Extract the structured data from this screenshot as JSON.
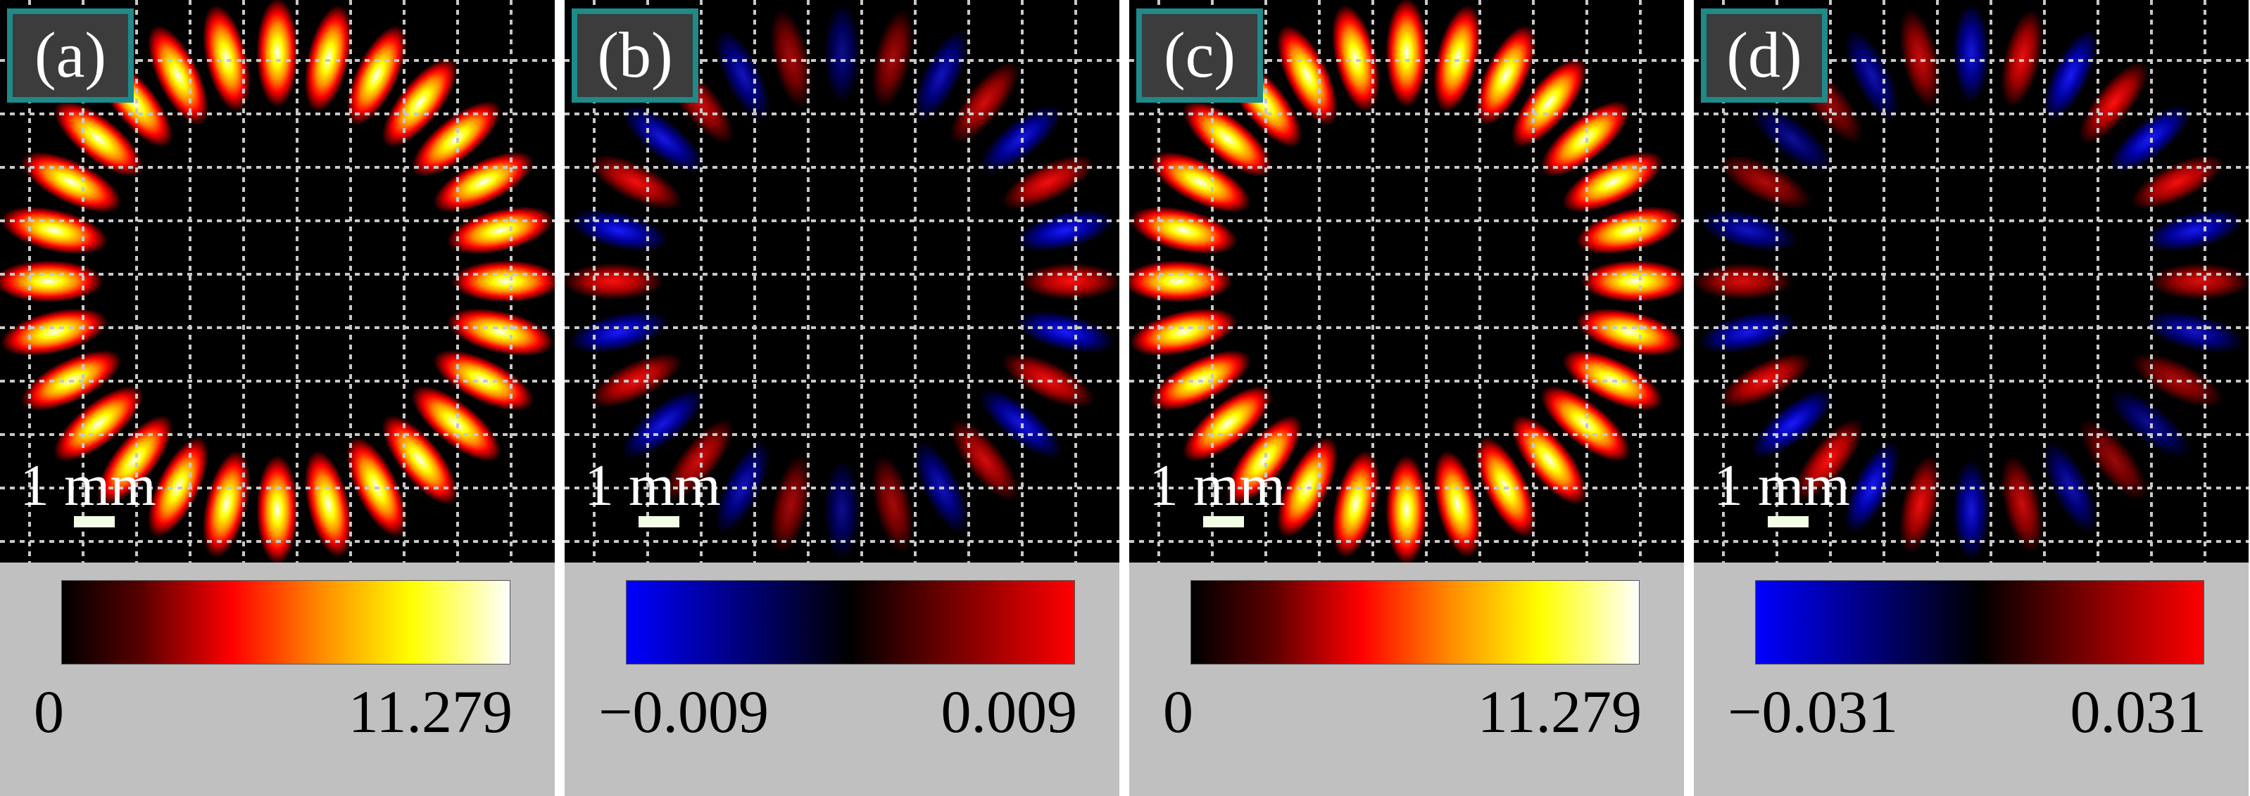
{
  "panels": [
    {
      "label": "(a)",
      "map": "hot",
      "petals": 28,
      "mode": "intensity",
      "scale_label": "1 mm",
      "colorbar": {
        "min": "0",
        "max": "11.279"
      }
    },
    {
      "label": "(b)",
      "map": "diverging",
      "petals": 28,
      "mode": "signed",
      "scale_label": "1 mm",
      "colorbar": {
        "min": "−0.009",
        "max": "0.009"
      }
    },
    {
      "label": "(c)",
      "map": "hot",
      "petals": 28,
      "mode": "intensity",
      "scale_label": "1 mm",
      "colorbar": {
        "min": "0",
        "max": "11.279"
      }
    },
    {
      "label": "(d)",
      "map": "diverging",
      "petals": 28,
      "mode": "signed",
      "scale_label": "1 mm",
      "colorbar": {
        "min": "−0.031",
        "max": "0.031"
      }
    }
  ],
  "colors": {
    "frame": "#ffffff",
    "label_border": "#1e8a8a",
    "label_fill": "#3c3c3c",
    "colorbar_panel": "#c0c0c0",
    "grid": "#c8c8c8",
    "hot": [
      "#000000",
      "#5a0000",
      "#ff0000",
      "#ff8c00",
      "#ffff00",
      "#ffffff"
    ],
    "diverging": [
      "#0000ff",
      "#000000",
      "#ff0000"
    ]
  }
}
